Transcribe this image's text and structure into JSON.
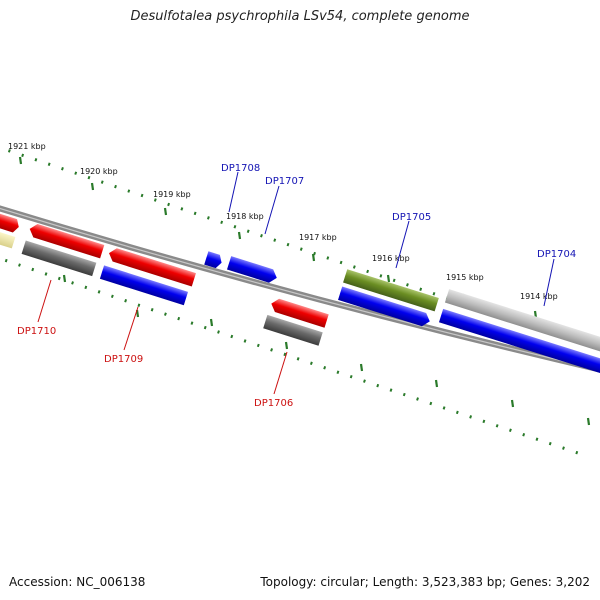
{
  "title": "Desulfotalea psychrophila LSv54, complete genome",
  "footer": {
    "accession": "Accession: NC_006138",
    "topology": "Topology: circular; Length: 3,523,383 bp; Genes: 3,202"
  },
  "scale_labels": [
    "1921 kbp",
    "1920 kbp",
    "1919 kbp",
    "1918 kbp",
    "1917 kbp",
    "1916 kbp",
    "1915 kbp",
    "1914 kbp"
  ],
  "gene_labels": [
    "DP1708",
    "DP1707",
    "DP1705",
    "DP1704",
    "DP1710",
    "DP1709",
    "DP1706"
  ],
  "colors": {
    "forward_gene": "#ee0000",
    "reverse_gene": "#0000ee",
    "gray_gene": "#666666",
    "olive_gene": "#6b8e23",
    "light_gray_gene": "#bbbbbb",
    "pale_yellow_gene": "#eee8aa",
    "backbone": "#888888",
    "tick": "#2a7a2a",
    "label_blue": "#1414b4",
    "label_red": "#cc1111"
  }
}
